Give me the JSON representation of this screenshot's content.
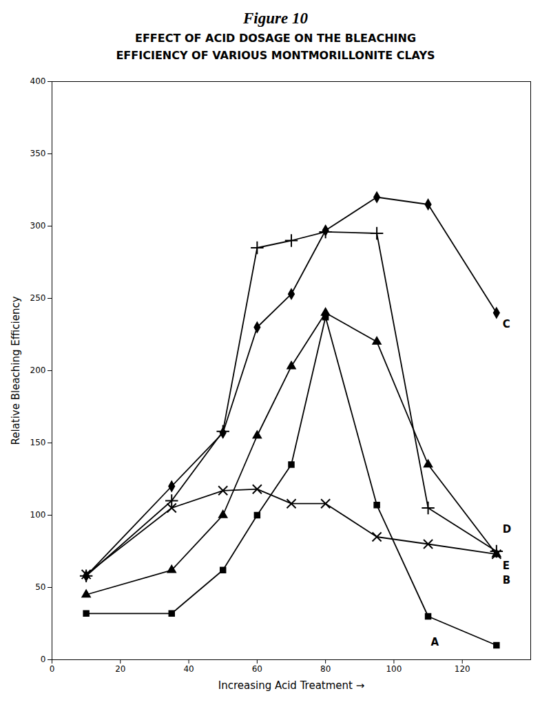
{
  "chart_data": {
    "type": "line",
    "title": "Figure 10",
    "subtitle": [
      "EFFECT OF ACID DOSAGE ON THE BLEACHING",
      "EFFICIENCY OF VARIOUS MONTMORILLONITE CLAYS"
    ],
    "xlabel": "Increasing Acid Treatment →",
    "ylabel": "Relative Bleaching Efficiency",
    "x": [
      10,
      35,
      50,
      60,
      70,
      80,
      95,
      110,
      130
    ],
    "series": [
      {
        "name": "A",
        "color": "#000000",
        "marker": "square",
        "values": [
          32,
          32,
          62,
          100,
          135,
          237,
          107,
          30,
          10
        ]
      },
      {
        "name": "B",
        "color": "#000000",
        "marker": "triangle",
        "values": [
          45,
          62,
          100,
          155,
          203,
          240,
          220,
          135,
          73
        ]
      },
      {
        "name": "C",
        "color": "#000000",
        "marker": "diamond",
        "values": [
          58,
          120,
          157,
          230,
          253,
          297,
          320,
          315,
          240
        ]
      },
      {
        "name": "D",
        "color": "#000000",
        "marker": "plus",
        "values": [
          58,
          110,
          158,
          285,
          290,
          296,
          295,
          105,
          75
        ]
      },
      {
        "name": "E",
        "color": "#000000",
        "marker": "x",
        "values": [
          59,
          105,
          117,
          118,
          108,
          108,
          85,
          80,
          73
        ]
      }
    ],
    "annotations": [
      {
        "text": "A",
        "x": 110,
        "y": 12
      },
      {
        "text": "B",
        "x": 131,
        "y": 55
      },
      {
        "text": "C",
        "x": 131,
        "y": 232
      },
      {
        "text": "D",
        "x": 131,
        "y": 90
      },
      {
        "text": "E",
        "x": 131,
        "y": 65
      }
    ],
    "xlim": [
      0,
      140
    ],
    "ylim": [
      0,
      400
    ],
    "xticks": [
      0,
      20,
      40,
      60,
      80,
      100,
      120
    ],
    "yticks": [
      0,
      50,
      100,
      150,
      200,
      250,
      300,
      350,
      400
    ],
    "grid": false
  }
}
